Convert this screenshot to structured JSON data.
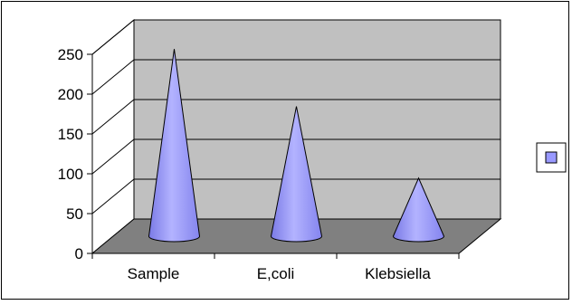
{
  "chart_data": {
    "type": "bar",
    "style": "3d-cone",
    "categories": [
      "Sample",
      "E,coli",
      "Klebsiella"
    ],
    "series": [
      {
        "values": [
          235,
          163,
          73
        ]
      }
    ],
    "ylim": [
      0,
      250
    ],
    "yticks": [
      0,
      50,
      100,
      150,
      200,
      250
    ],
    "grid": true,
    "legend": "right",
    "title": "",
    "xlabel": "",
    "ylabel": "",
    "colors": {
      "cone": "#9999ff",
      "cone_stroke": "#000000",
      "back_wall": "#c0c0c0",
      "side_wall": "#ffffff",
      "floor": "#808080",
      "legend_swatch": "#9999ff"
    }
  }
}
